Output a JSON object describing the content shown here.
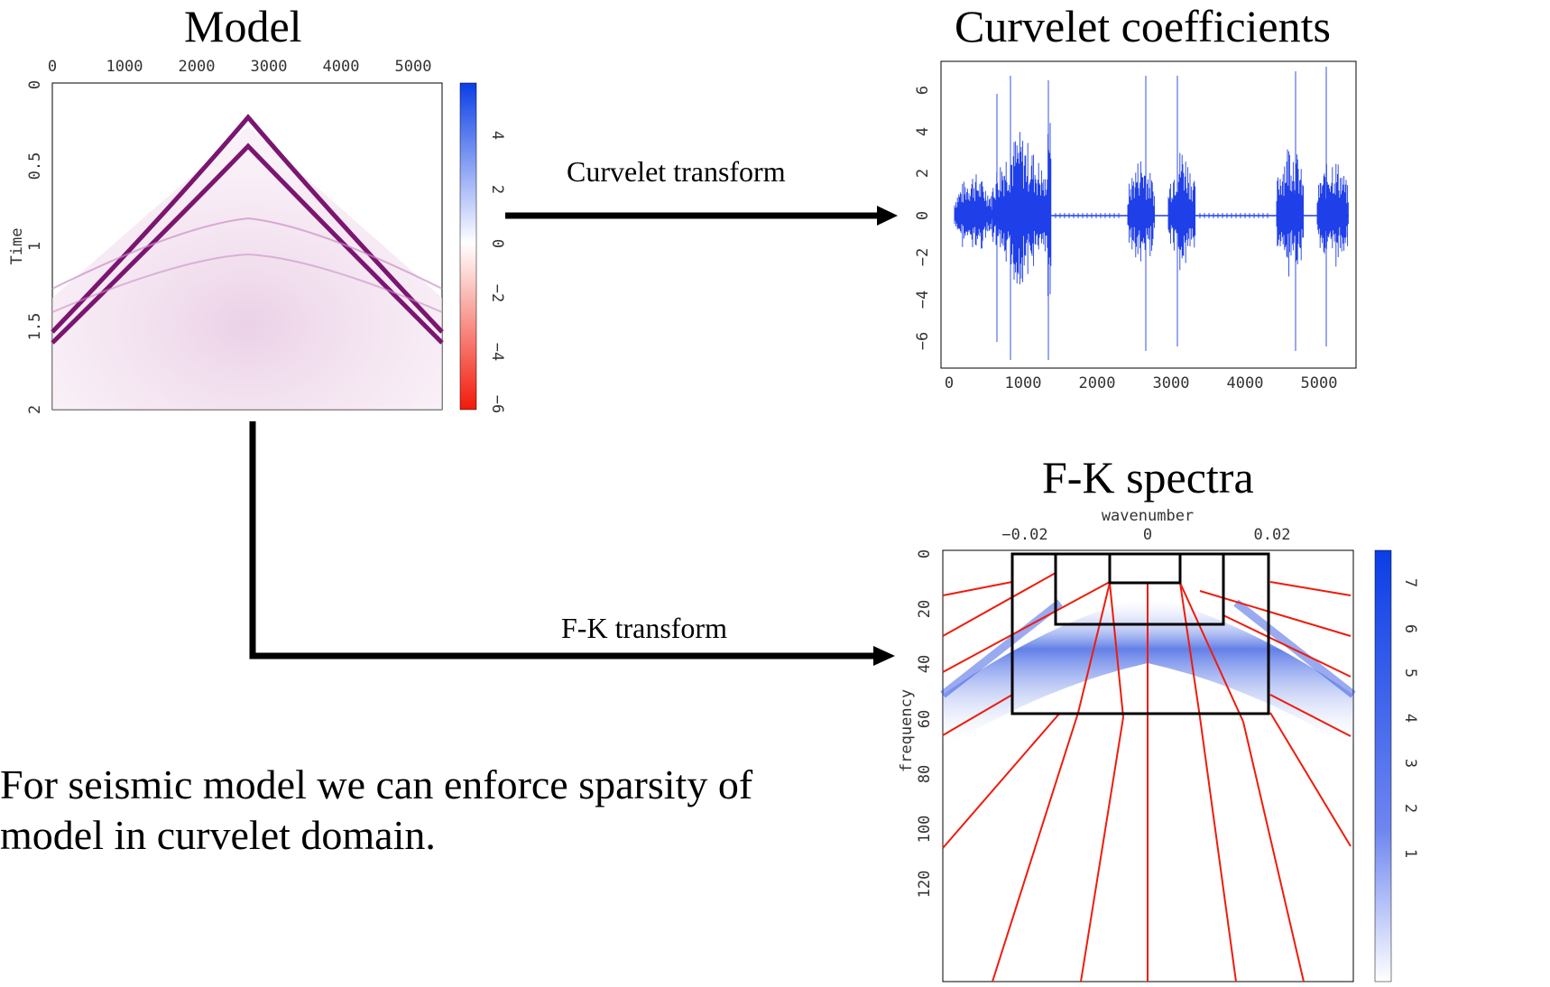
{
  "titles": {
    "model": "Model",
    "curvelet": "Curvelet coefficients",
    "fk": "F-K spectra"
  },
  "arrows": {
    "curvelet_transform": "Curvelet transform",
    "fk_transform": "F-K transform"
  },
  "caption": {
    "line1": "For seismic model we can enforce sparsity of",
    "line2": "model in curvelet domain."
  },
  "model_panel": {
    "x_ticks": [
      "0",
      "1000",
      "2000",
      "3000",
      "4000",
      "5000"
    ],
    "y_ticks": [
      "0",
      "0.5",
      "1",
      "1.5",
      "2"
    ],
    "y_label": "Time",
    "colorbar_ticks": [
      "4",
      "2",
      "0",
      "−2",
      "−4",
      "−6"
    ],
    "colors": {
      "positive": "#0a3fe6",
      "negative": "#f21a0a",
      "event": "#7a1670"
    }
  },
  "curvelet_panel": {
    "x_ticks": [
      "0",
      "1000",
      "2000",
      "3000",
      "4000",
      "5000"
    ],
    "y_ticks": [
      "6",
      "4",
      "2",
      "0",
      "−2",
      "−4",
      "−6"
    ],
    "color": "#1f3fe8"
  },
  "fk_panel": {
    "x_label": "wavenumber",
    "x_ticks": [
      "−0.02",
      "0",
      "0.02"
    ],
    "y_ticks": [
      "0",
      "20",
      "40",
      "60",
      "80",
      "100",
      "120"
    ],
    "y_label": "frequency",
    "colorbar_ticks": [
      "7",
      "6",
      "5",
      "4",
      "3",
      "2",
      "1"
    ],
    "colors": {
      "spectrum": "#1f44e0",
      "wedges": "#ee1c0c",
      "boxes": "#000000"
    }
  }
}
